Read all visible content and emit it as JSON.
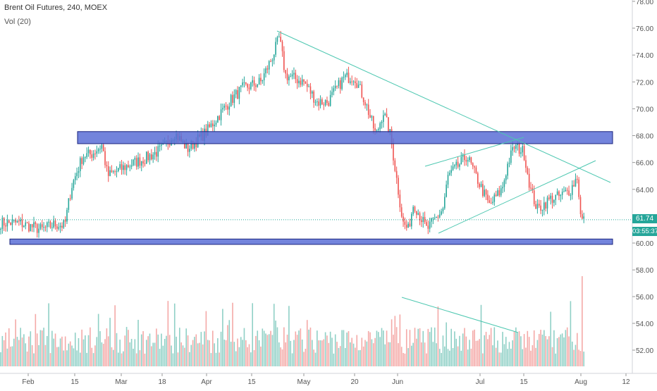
{
  "header": {
    "symbol_line": "Brent Oil Futures, 240, MOEX",
    "indicator_line": "Vol (20)"
  },
  "price_axis": {
    "labels": [
      "78.00",
      "76.00",
      "74.00",
      "72.00",
      "70.00",
      "68.00",
      "66.00",
      "64.00",
      "62.00",
      "60.00",
      "58.00",
      "56.00",
      "54.00",
      "52.00"
    ]
  },
  "last_price": {
    "value": "61.74",
    "countdown": "03:55:37",
    "color": "#26a69a"
  },
  "time_axis": {
    "labels": [
      "Feb",
      "15",
      "Mar",
      "18",
      "Apr",
      "15",
      "May",
      "20",
      "Jun",
      "Jul",
      "15",
      "Aug",
      "12"
    ]
  },
  "colors": {
    "up": "#26a69a",
    "down": "#ef5350",
    "up_volume": "#8fd0c6",
    "down_volume": "#f4a9a7",
    "zone_fill": "#5b6fd6",
    "zone_border": "#1a237e",
    "trendline": "#4cc7b0",
    "last_price_line": "#26a69a"
  },
  "chart_data": {
    "type": "candlestick",
    "instrument": "Brent Oil Futures",
    "timeframe": "240",
    "exchange": "MOEX",
    "indicator": "Vol (20)",
    "y_range": [
      51,
      78
    ],
    "grid": false,
    "price_path": [
      [
        "Jan 30",
        61.5
      ],
      [
        "Feb 5",
        61.0
      ],
      [
        "Feb 9",
        61.4
      ],
      [
        "Feb 12",
        61.3
      ],
      [
        "Feb 14",
        64.2
      ],
      [
        "Feb 18",
        66.5
      ],
      [
        "Feb 21",
        66.6
      ],
      [
        "Feb 25",
        67.3
      ],
      [
        "Feb 27",
        65.0
      ],
      [
        "Mar 4",
        65.8
      ],
      [
        "Mar 11",
        66.3
      ],
      [
        "Mar 18",
        67.0
      ],
      [
        "Mar 22",
        68.2
      ],
      [
        "Mar 26",
        67.0
      ],
      [
        "Apr 1",
        68.3
      ],
      [
        "Apr 8",
        70.5
      ],
      [
        "Apr 12",
        71.5
      ],
      [
        "Apr 18",
        72.0
      ],
      [
        "Apr 22",
        74.0
      ],
      [
        "Apr 24",
        75.3
      ],
      [
        "Apr 26",
        72.5
      ],
      [
        "May 1",
        72.0
      ],
      [
        "May 6",
        70.5
      ],
      [
        "May 10",
        70.5
      ],
      [
        "May 16",
        72.3
      ],
      [
        "May 20",
        72.4
      ],
      [
        "May 23",
        70.5
      ],
      [
        "May 26",
        68.0
      ],
      [
        "May 28",
        69.8
      ],
      [
        "May 30",
        68.0
      ],
      [
        "Jun 3",
        61.5
      ],
      [
        "Jun 5",
        61.0
      ],
      [
        "Jun 7",
        63.0
      ],
      [
        "Jun 12",
        61.0
      ],
      [
        "Jun 14",
        61.5
      ],
      [
        "Jun 18",
        62.5
      ],
      [
        "Jun 20",
        65.0
      ],
      [
        "Jun 24",
        65.8
      ],
      [
        "Jun 27",
        66.5
      ],
      [
        "Jul 1",
        64.3
      ],
      [
        "Jul 4",
        62.8
      ],
      [
        "Jul 8",
        64.0
      ],
      [
        "Jul 10",
        66.0
      ],
      [
        "Jul 12",
        67.2
      ],
      [
        "Jul 15",
        66.8
      ],
      [
        "Jul 17",
        64.0
      ],
      [
        "Jul 19",
        62.5
      ],
      [
        "Jul 23",
        63.3
      ],
      [
        "Jul 26",
        63.5
      ],
      [
        "Jul 29",
        64.0
      ],
      [
        "Jul 31",
        65.0
      ],
      [
        "Aug 1",
        61.7
      ]
    ],
    "zones": [
      {
        "from": 67.4,
        "to": 68.3
      },
      {
        "from": 59.9,
        "to": 60.3
      }
    ],
    "last_price": 61.74
  }
}
